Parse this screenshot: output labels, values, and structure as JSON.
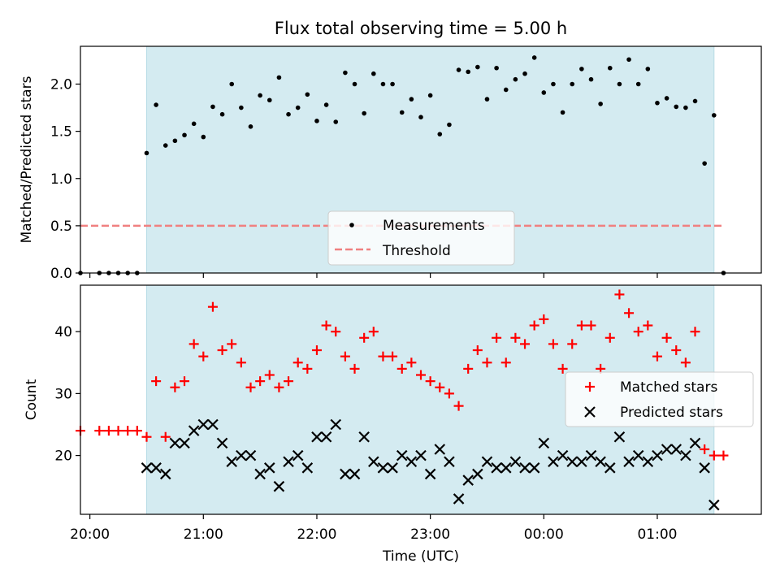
{
  "chart_data": [
    {
      "type": "scatter",
      "title": "Flux total observing time = 5.00 h",
      "xlabel": "",
      "ylabel": "Matched/Predicted stars",
      "ylim": [
        0,
        2.4
      ],
      "xlim": [
        "19:55",
        "01:55"
      ],
      "yticks": [
        "0.0",
        "0.5",
        "1.0",
        "1.5",
        "2.0"
      ],
      "observing_window": [
        "20:30",
        "01:30"
      ],
      "legend_position": "center-bottom",
      "threshold": 0.5,
      "series": [
        {
          "name": "Measurements",
          "x": [
            "19:55",
            "20:05",
            "20:10",
            "20:15",
            "20:20",
            "20:25",
            "20:30",
            "20:35",
            "20:40",
            "20:45",
            "20:50",
            "20:55",
            "21:00",
            "21:05",
            "21:10",
            "21:15",
            "21:20",
            "21:25",
            "21:30",
            "21:35",
            "21:40",
            "21:45",
            "21:50",
            "21:55",
            "22:00",
            "22:05",
            "22:10",
            "22:15",
            "22:20",
            "22:25",
            "22:30",
            "22:35",
            "22:40",
            "22:45",
            "22:50",
            "22:55",
            "23:00",
            "23:05",
            "23:10",
            "23:15",
            "23:20",
            "23:25",
            "23:30",
            "23:35",
            "23:40",
            "23:45",
            "23:50",
            "23:55",
            "00:00",
            "00:05",
            "00:10",
            "00:15",
            "00:20",
            "00:25",
            "00:30",
            "00:35",
            "00:40",
            "00:45",
            "00:50",
            "00:55",
            "01:00",
            "01:05",
            "01:10",
            "01:15",
            "01:20",
            "01:25",
            "01:30",
            "01:35"
          ],
          "y": [
            0.0,
            0.0,
            0.0,
            0.0,
            0.0,
            0.0,
            1.27,
            1.78,
            1.35,
            1.4,
            1.46,
            1.58,
            1.44,
            1.76,
            1.68,
            2.0,
            1.75,
            1.55,
            1.88,
            1.83,
            2.07,
            1.68,
            1.75,
            1.89,
            1.61,
            1.78,
            1.6,
            2.12,
            2.0,
            1.69,
            2.11,
            2.0,
            2.0,
            1.7,
            1.84,
            1.65,
            1.88,
            1.47,
            1.57,
            2.15,
            2.13,
            2.18,
            1.84,
            2.17,
            1.94,
            2.05,
            2.11,
            2.28,
            1.91,
            2.0,
            1.7,
            2.0,
            2.16,
            2.05,
            1.79,
            2.17,
            2.0,
            2.26,
            2.0,
            2.16,
            1.8,
            1.85,
            1.76,
            1.75,
            1.82,
            1.16,
            1.67,
            0.0
          ]
        },
        {
          "name": "Threshold",
          "x": [
            "19:55",
            "01:35"
          ],
          "y": [
            0.5,
            0.5
          ]
        }
      ]
    },
    {
      "type": "scatter",
      "title": "",
      "xlabel": "Time (UTC)",
      "ylabel": "Count",
      "ylim": [
        10.5,
        47.5
      ],
      "xlim": [
        "19:55",
        "01:55"
      ],
      "xticks": [
        "20:00",
        "21:00",
        "22:00",
        "23:00",
        "00:00",
        "01:00"
      ],
      "yticks": [
        "20",
        "30",
        "40"
      ],
      "observing_window": [
        "20:30",
        "01:30"
      ],
      "legend_position": "center-right",
      "series": [
        {
          "name": "Matched stars",
          "x": [
            "19:55",
            "20:05",
            "20:10",
            "20:15",
            "20:20",
            "20:25",
            "20:30",
            "20:35",
            "20:40",
            "20:45",
            "20:50",
            "20:55",
            "21:00",
            "21:05",
            "21:10",
            "21:15",
            "21:20",
            "21:25",
            "21:30",
            "21:35",
            "21:40",
            "21:45",
            "21:50",
            "21:55",
            "22:00",
            "22:05",
            "22:10",
            "22:15",
            "22:20",
            "22:25",
            "22:30",
            "22:35",
            "22:40",
            "22:45",
            "22:50",
            "22:55",
            "23:00",
            "23:05",
            "23:10",
            "23:15",
            "23:20",
            "23:25",
            "23:30",
            "23:35",
            "23:40",
            "23:45",
            "23:50",
            "23:55",
            "00:00",
            "00:05",
            "00:10",
            "00:15",
            "00:20",
            "00:25",
            "00:30",
            "00:35",
            "00:40",
            "00:45",
            "00:50",
            "00:55",
            "01:00",
            "01:05",
            "01:10",
            "01:15",
            "01:20",
            "01:25",
            "01:30",
            "01:35"
          ],
          "y": [
            24,
            24,
            24,
            24,
            24,
            24,
            23,
            32,
            23,
            31,
            32,
            38,
            36,
            44,
            37,
            38,
            35,
            31,
            32,
            33,
            31,
            32,
            35,
            34,
            37,
            41,
            40,
            36,
            34,
            39,
            40,
            36,
            36,
            34,
            35,
            33,
            32,
            31,
            30,
            28,
            34,
            37,
            35,
            39,
            35,
            39,
            38,
            41,
            42,
            38,
            34,
            38,
            41,
            41,
            34,
            39,
            46,
            43,
            40,
            41,
            36,
            39,
            37,
            35,
            40,
            21,
            20,
            20
          ]
        },
        {
          "name": "Predicted stars",
          "x": [
            "20:30",
            "20:35",
            "20:40",
            "20:45",
            "20:50",
            "20:55",
            "21:00",
            "21:05",
            "21:10",
            "21:15",
            "21:20",
            "21:25",
            "21:30",
            "21:35",
            "21:40",
            "21:45",
            "21:50",
            "21:55",
            "22:00",
            "22:05",
            "22:10",
            "22:15",
            "22:20",
            "22:25",
            "22:30",
            "22:35",
            "22:40",
            "22:45",
            "22:50",
            "22:55",
            "23:00",
            "23:05",
            "23:10",
            "23:15",
            "23:20",
            "23:25",
            "23:30",
            "23:35",
            "23:40",
            "23:45",
            "23:50",
            "23:55",
            "00:00",
            "00:05",
            "00:10",
            "00:15",
            "00:20",
            "00:25",
            "00:30",
            "00:35",
            "00:40",
            "00:45",
            "00:50",
            "00:55",
            "01:00",
            "01:05",
            "01:10",
            "01:15",
            "01:20",
            "01:25",
            "01:30"
          ],
          "y": [
            18,
            18,
            17,
            22,
            22,
            24,
            25,
            25,
            22,
            19,
            20,
            20,
            17,
            18,
            15,
            19,
            20,
            18,
            23,
            23,
            25,
            17,
            17,
            23,
            19,
            18,
            18,
            20,
            19,
            20,
            17,
            21,
            19,
            13,
            16,
            17,
            19,
            18,
            18,
            19,
            18,
            18,
            22,
            19,
            20,
            19,
            19,
            20,
            19,
            18,
            23,
            19,
            20,
            19,
            20,
            21,
            21,
            20,
            22,
            18,
            12
          ]
        }
      ]
    }
  ],
  "colors": {
    "window_fill": "#d4ebf1",
    "measurement": "#000000",
    "threshold": "#f08080",
    "matched": "#ff0000",
    "predicted": "#000000"
  },
  "legend": {
    "top": [
      "Measurements",
      "Threshold"
    ],
    "bottom": [
      "Matched stars",
      "Predicted stars"
    ]
  }
}
